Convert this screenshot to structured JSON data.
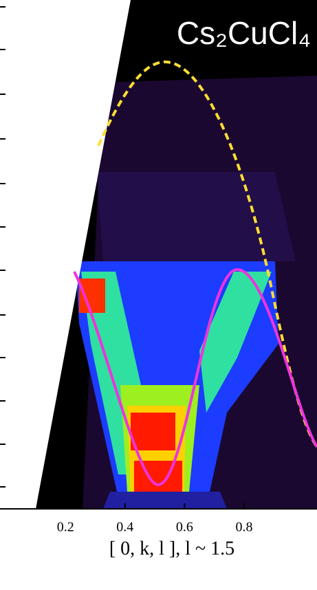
{
  "chart_data": {
    "type": "heatmap",
    "title": "Cs₂CuCl₄",
    "x_label": "[ 0, k, l ],  l ~ 1.5",
    "xlim": [
      -0.02,
      1.045
    ],
    "xticks": [
      0.2,
      0.4,
      0.6,
      0.8
    ]
  }
}
